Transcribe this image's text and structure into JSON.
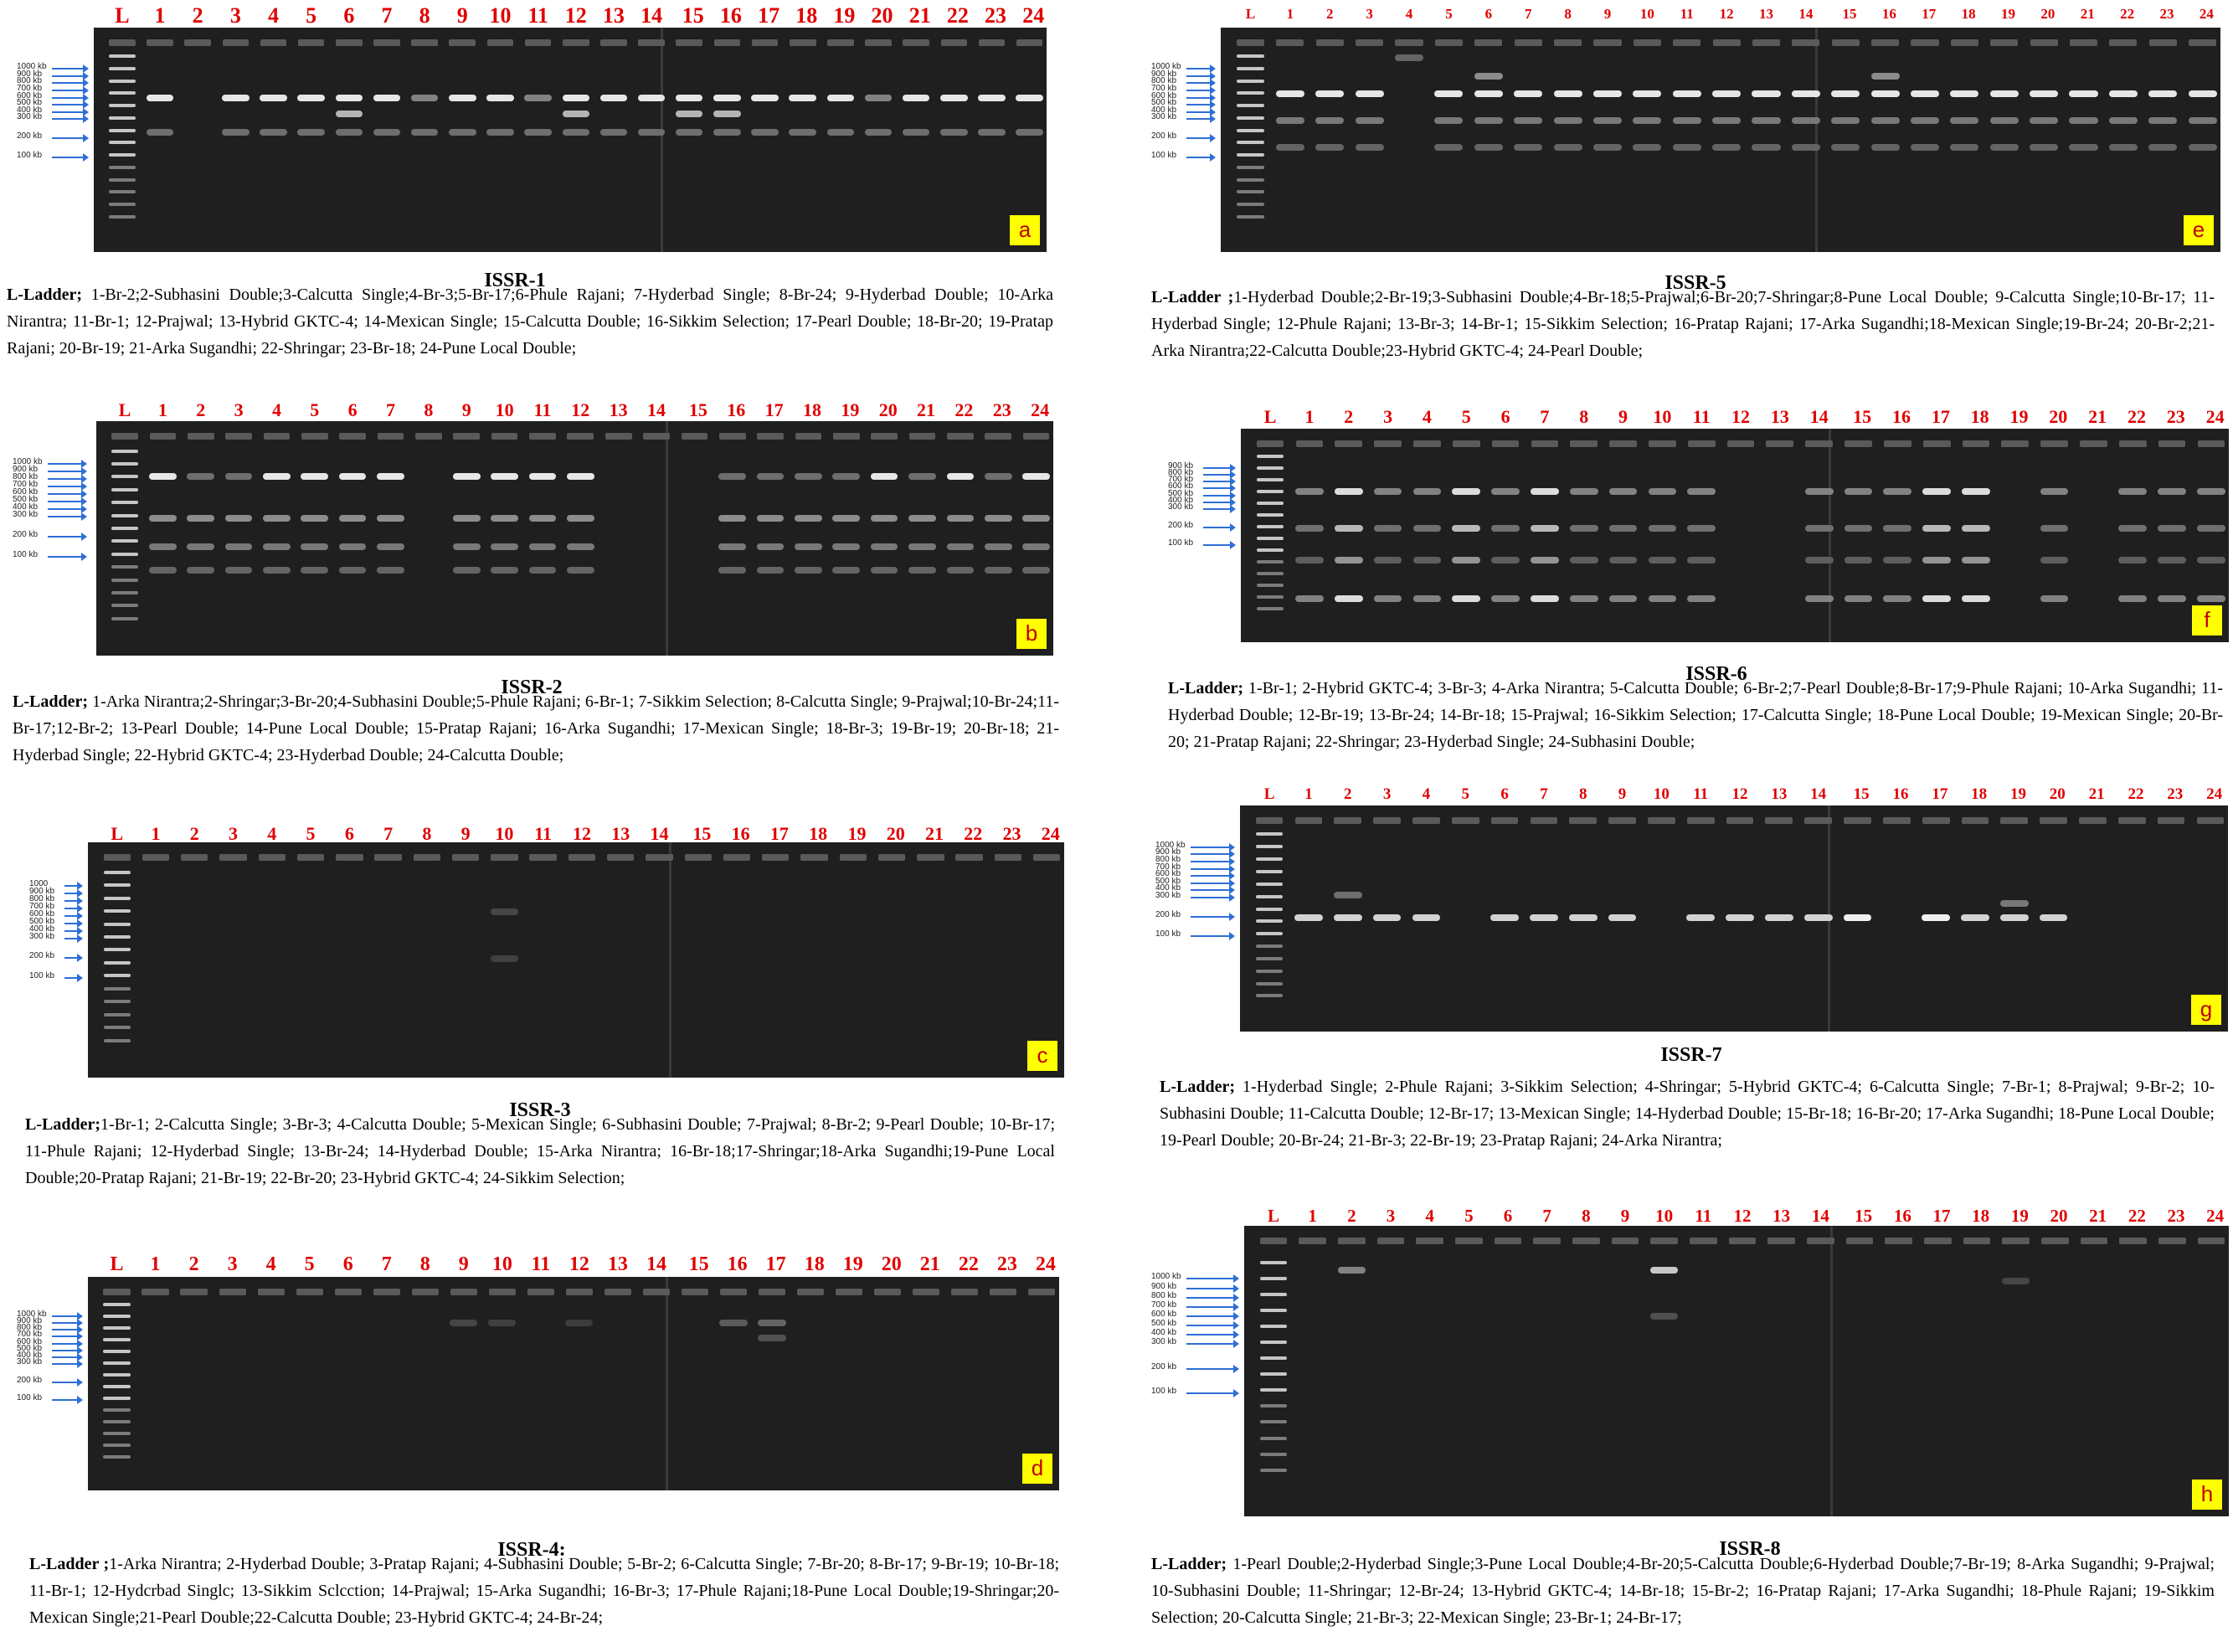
{
  "colors": {
    "gel": "#1f1f1f",
    "lane_label": "#e00000",
    "arrow": "#2e6fd6",
    "tag_bg": "#ffff00",
    "tag_text": "#c00000",
    "band": "#e6e6e6"
  },
  "lane_labels": [
    "L",
    "1",
    "2",
    "3",
    "4",
    "5",
    "6",
    "7",
    "8",
    "9",
    "10",
    "11",
    "12",
    "13",
    "14",
    "15",
    "16",
    "17",
    "18",
    "19",
    "20",
    "21",
    "22",
    "23",
    "24"
  ],
  "ladder_prefix": "L-Ladder",
  "panels": [
    {
      "id": "issr1",
      "tag": "a",
      "title": "ISSR-1",
      "ladder_sep": ";",
      "markers": [
        "1000 kb",
        "900 kb",
        "800 kb",
        "700 kb",
        "600 kb",
        "500 kb",
        "400 kb",
        "300 kb",
        "200 kb",
        "100 kb"
      ],
      "legend": " 1-Br-2;2-Subhasini Double;3-Calcutta Single;4-Br-3;5-Br-17;6-Phule Rajani; 7-Hyderbad Single;  8-Br-24; 9-Hyderbad Double;  10-Arka Nirantra;  11-Br-1;  12-Prajwal;  13-Hybrid GKTC-4;  14-Mexican Single;  15-Calcutta Double;  16-Sikkim Selection;  17-Pearl Double;  18-Br-20;  19-Pratap Rajani;  20-Br-19;  21-Arka Sugandhi;  22-Shringar;  23-Br-18;  24-Pune Local Double;"
    },
    {
      "id": "issr2",
      "tag": "b",
      "title": "ISSR-2",
      "ladder_sep": ";",
      "markers": [
        "1000 kb",
        "900 kb",
        "800 kb",
        "700 kb",
        "600 kb",
        "500 kb",
        "400 kb",
        "300 kb",
        "200 kb",
        "100 kb"
      ],
      "legend": " 1-Arka Nirantra;2-Shringar;3-Br-20;4-Subhasini Double;5-Phule Rajani;  6-Br-1;  7-Sikkim Selection;  8-Calcutta Single;          9-Prajwal;10-Br-24;11-Br-17;12-Br-2;  13-Pearl Double;  14-Pune Local Double;  15-Pratap Rajani; 16-Arka Sugandhi;  17-Mexican Single;  18-Br-3;  19-Br-19;  20-Br-18;  21-Hyderbad Single;  22-Hybrid GKTC-4; 23-Hyderbad Double;  24-Calcutta Double;"
    },
    {
      "id": "issr3",
      "tag": "c",
      "title": "ISSR-3",
      "ladder_sep": ";",
      "markers": [
        "1000",
        "900 kb",
        "800 kb",
        "700 kb",
        "600 kb",
        "500 kb",
        "400 kb",
        "300 kb",
        "200 kb",
        "100 kb"
      ],
      "legend": "1-Br-1;  2-Calcutta Single;  3-Br-3;  4-Calcutta Double;  5-Mexican Single;  6-Subhasini Double;  7-Prajwal;  8-Br-2; 9-Pearl Double;  10-Br-17;  11-Phule Rajani;  12-Hyderbad Single;  13-Br-24;  14-Hyderbad Double;  15-Arka Nirantra;  16-Br-18;17-Shringar;18-Arka Sugandhi;19-Pune Local Double;20-Pratap Rajani;  21-Br-19;  22-Br-20;  23-Hybrid GKTC-4;  24-Sikkim Selection;"
    },
    {
      "id": "issr4",
      "tag": "d",
      "title": "ISSR-4:",
      "ladder_sep": " ;",
      "markers": [
        "1000 kb",
        "900 kb",
        "800 kb",
        "700 kb",
        "600 kb",
        "500 kb",
        "400 kb",
        "300 kb",
        "200 kb",
        "100 kb"
      ],
      "legend": "1-Arka Nirantra;  2-Hyderbad Double;  3-Pratap Rajani;  4-Subhasini Double;  5-Br-2;  6-Calcutta Single;   7-Br-20; 8-Br-17;  9-Br-19;  10-Br-18;  11-Br-1;  12-Hydcrbad Singlc;  13-Sikkim Sclcction;  14-Prajwal;  15-Arka Sugandhi;  16-Br-3; 17-Phule   Rajani;18-Pune   Local   Double;19-Shringar;20-Mexican   Single;21-Pearl   Double;22-Calcutta   Double; 23-Hybrid GKTC-4; 24-Br-24;"
    },
    {
      "id": "issr5",
      "tag": "e",
      "title": "ISSR-5",
      "ladder_sep": " ;",
      "markers": [
        "1000 kb",
        "900 kb",
        "800 kb",
        "700 kb",
        "600 kb",
        "500 kb",
        "400 kb",
        "300 kb",
        "200 kb",
        "100 kb"
      ],
      "legend": "1-Hyderbad Double;2-Br-19;3-Subhasini Double;4-Br-18;5-Prajwal;6-Br-20;7-Shringar;8-Pune Local Double; 9-Calcutta Single;10-Br-17; 11-Hyderbad Single;  12-Phule Rajani;  13-Br-3;  14-Br-1;  15-Sikkim Selection;  16-Pratap Rajani; 17-Arka Sugandhi;18-Mexican Single;19-Br-24;  20-Br-2;21-Arka Nirantra;22-Calcutta Double;23-Hybrid GKTC-4; 24-Pearl Double;"
    },
    {
      "id": "issr6",
      "tag": "f",
      "title": "ISSR-6",
      "ladder_sep": ";",
      "markers": [
        "900 kb",
        "800 kb",
        "700 kb",
        "600 kb",
        "500 kb",
        "400 kb",
        "300 kb",
        "200 kb",
        "100 kb"
      ],
      "legend": " 1-Br-1;  2-Hybrid GKTC-4;  3-Br-3;  4-Arka Nirantra;  5-Calcutta Double;  6-Br-2;7-Pearl Double;8-Br-17;9-Phule Rajani; 10-Arka Sugandhi;  11-Hyderbad Double;  12-Br-19;  13-Br-24;  14-Br-18;    15-Prajwal;  16-Sikkim Selection;     17-Calcutta Single; 18-Pune Local Double;  19-Mexican Single;  20-Br-20;  21-Pratap Rajani;  22-Shringar;  23-Hyderbad Single;  24-Subhasini Double;"
    },
    {
      "id": "issr7",
      "tag": "g",
      "title": "ISSR-7",
      "ladder_sep": ";",
      "markers": [
        "1000 kb",
        "900 kb",
        "800 kb",
        "700 kb",
        "600 kb",
        "500 kb",
        "400 kb",
        "300 kb",
        "200 kb",
        "100 kb"
      ],
      "legend": " 1-Hyderbad Single;  2-Phule Rajani;  3-Sikkim Selection;  4-Shringar;  5-Hybrid GKTC-4;  6-Calcutta Single;  7-Br-1;   8-Prajwal;  9-Br-2;  10-Subhasini Double;  11-Calcutta Double;  12-Br-17;  13-Mexican Single;  14-Hyderbad Double;  15-Br-18;  16-Br-20; 17-Arka Sugandhi;  18-Pune Local Double;  19-Pearl Double;  20-Br-24;  21-Br-3;  22-Br-19;  23-Pratap Rajani;  24-Arka Nirantra;"
    },
    {
      "id": "issr8",
      "tag": "h",
      "title": "ISSR-8",
      "ladder_sep": ";",
      "markers": [
        "1000 kb",
        "900 kb",
        "800 kb",
        "700 kb",
        "600 kb",
        "500 kb",
        "400 kb",
        "300 kb",
        "200 kb",
        "100 kb"
      ],
      "legend": " 1-Pearl Double;2-Hyderbad Single;3-Pune Local Double;4-Br-20;5-Calcutta Double;6-Hyderbad Double;7-Br-19; 8-Arka Sugandhi;  9-Prajwal;  10-Subhasini Double;  11-Shringar;  12-Br-24;  13-Hybrid GKTC-4;  14-Br-18;  15-Br-2;  16-Pratap Rajani; 17-Arka Sugandhi;  18-Phule Rajani;  19-Sikkim Selection;  20-Calcutta Single;  21-Br-3;  22-Mexican Single;  23-Br-1;  24-Br-17;"
    }
  ]
}
